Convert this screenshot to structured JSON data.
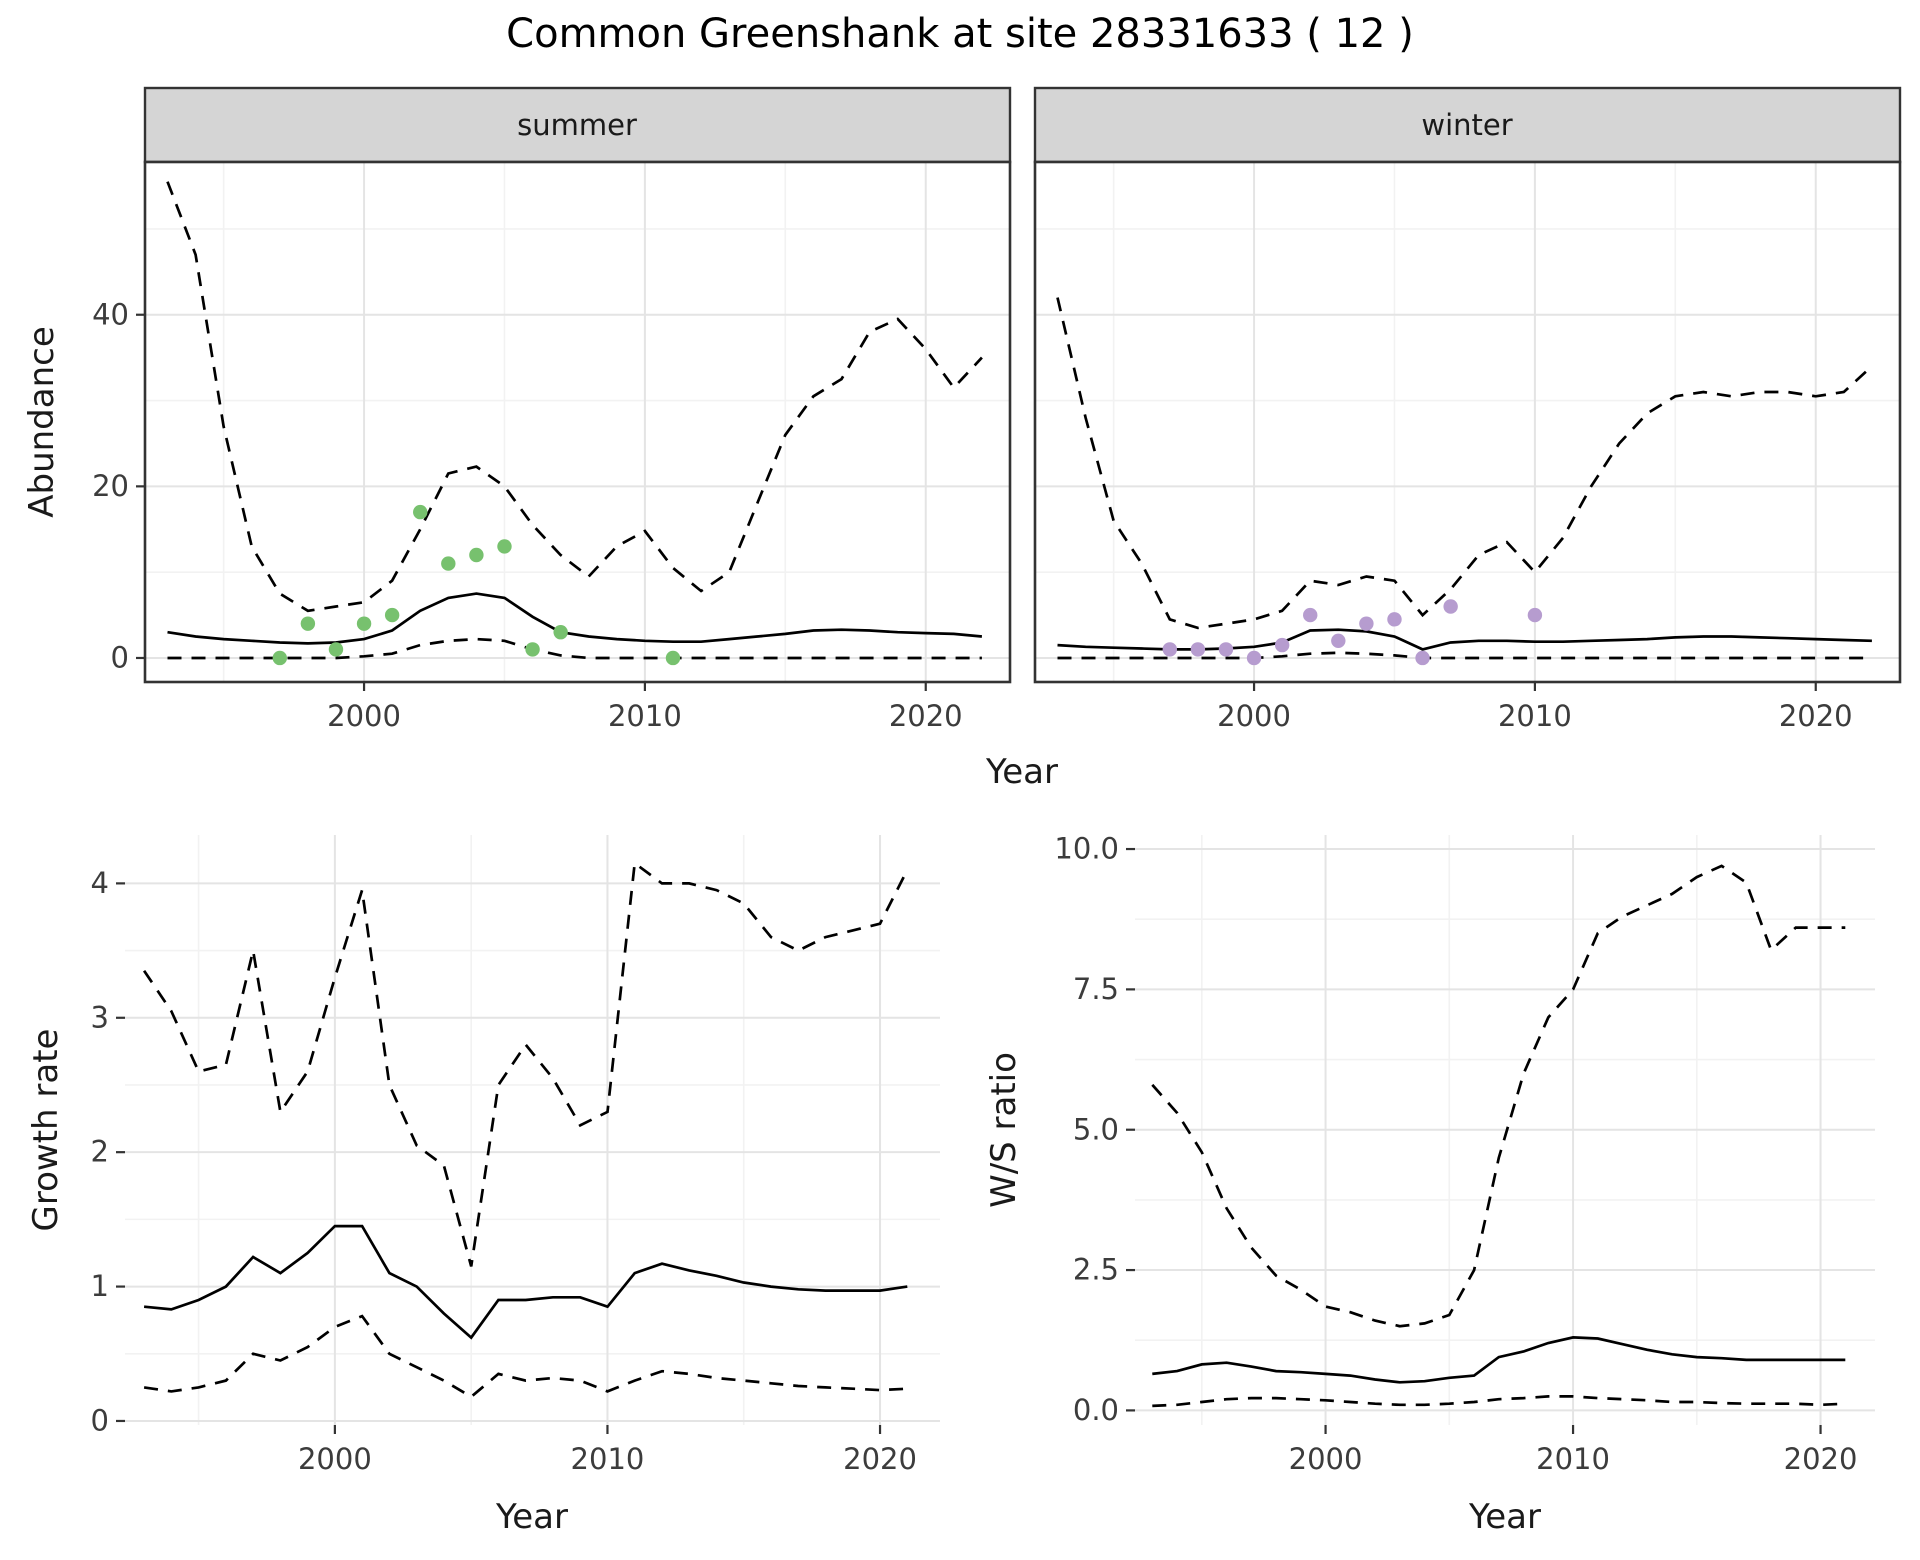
{
  "title": "Common Greenshank at site 28331633 ( 12 )",
  "labels": {
    "year": "Year",
    "abundance": "Abundance",
    "growth_rate": "Growth rate",
    "ws_ratio": "W/S ratio"
  },
  "facets": {
    "summer": "summer",
    "winter": "winter"
  },
  "colors": {
    "line": "#000000",
    "summer_points": "#77c16e",
    "winter_points": "#b69ccf",
    "strip_bg": "#d5d5d5",
    "grid_major": "#e4e4e4",
    "grid_minor": "#f2f2f2",
    "panel_bg": "#ffffff",
    "border": "#333333"
  },
  "chart_data": [
    {
      "id": "summer",
      "type": "line",
      "facet_label": "summer",
      "xlabel": "Year",
      "ylabel": "Abundance",
      "xlim": [
        1992.2,
        2023.0
      ],
      "ylim": [
        -2.8,
        57.8
      ],
      "x_ticks": [
        2000,
        2010,
        2020
      ],
      "x_tick_labels": [
        "2000",
        "2010",
        "2020"
      ],
      "y_ticks": [
        0,
        20,
        40
      ],
      "y_tick_labels": [
        "0",
        "20",
        "40"
      ],
      "x": [
        1993,
        1994,
        1995,
        1996,
        1997,
        1998,
        1999,
        2000,
        2001,
        2002,
        2003,
        2004,
        2005,
        2006,
        2007,
        2008,
        2009,
        2010,
        2011,
        2012,
        2013,
        2014,
        2015,
        2016,
        2017,
        2018,
        2019,
        2020,
        2021,
        2022
      ],
      "series": [
        {
          "name": "upper_95ci",
          "style": "dashed",
          "values": [
            55.5,
            47,
            27,
            13,
            7.5,
            5.5,
            6,
            6.5,
            9,
            15,
            21.5,
            22.3,
            20,
            15.5,
            12,
            9.5,
            13,
            14.8,
            10.5,
            7.8,
            10,
            18,
            26,
            30.5,
            32.5,
            38,
            39.5,
            36,
            31.5,
            35
          ]
        },
        {
          "name": "mean",
          "style": "solid",
          "values": [
            3,
            2.5,
            2.2,
            2,
            1.8,
            1.7,
            1.8,
            2.2,
            3.2,
            5.5,
            7,
            7.5,
            7,
            4.8,
            3,
            2.5,
            2.2,
            2,
            1.9,
            1.9,
            2.2,
            2.5,
            2.8,
            3.2,
            3.3,
            3.2,
            3,
            2.9,
            2.8,
            2.5
          ]
        },
        {
          "name": "lower_95ci",
          "style": "dashed",
          "values": [
            0,
            0,
            0,
            0,
            0,
            0,
            0,
            0.2,
            0.5,
            1.5,
            2,
            2.2,
            2,
            1,
            0.3,
            0,
            0,
            0,
            0,
            0,
            0,
            0,
            0,
            0,
            0,
            0,
            0,
            0,
            0,
            0
          ]
        }
      ],
      "points": {
        "name": "observed_counts",
        "color": "#77c16e",
        "x": [
          1997,
          1998,
          1999,
          2000,
          2001,
          2002,
          2003,
          2004,
          2005,
          2006,
          2007,
          2011
        ],
        "y": [
          0,
          4,
          1,
          4,
          5,
          17,
          11,
          12,
          13,
          1,
          3,
          0
        ]
      }
    },
    {
      "id": "winter",
      "type": "line",
      "facet_label": "winter",
      "xlabel": "Year",
      "ylabel": "Abundance",
      "xlim": [
        1992.2,
        2023.0
      ],
      "ylim": [
        -2.8,
        57.8
      ],
      "x_ticks": [
        2000,
        2010,
        2020
      ],
      "x_tick_labels": [
        "2000",
        "2010",
        "2020"
      ],
      "y_ticks": [
        0,
        20,
        40
      ],
      "y_tick_labels": [
        "0",
        "20",
        "40"
      ],
      "x": [
        1993,
        1994,
        1995,
        1996,
        1997,
        1998,
        1999,
        2000,
        2001,
        2002,
        2003,
        2004,
        2005,
        2006,
        2007,
        2008,
        2009,
        2010,
        2011,
        2012,
        2013,
        2014,
        2015,
        2016,
        2017,
        2018,
        2019,
        2020,
        2021,
        2022
      ],
      "series": [
        {
          "name": "upper_95ci",
          "style": "dashed",
          "values": [
            42,
            28,
            16,
            11,
            4.5,
            3.5,
            4,
            4.5,
            5.5,
            9,
            8.5,
            9.5,
            9,
            5,
            8,
            12,
            13.5,
            10,
            14,
            20,
            25,
            28.5,
            30.5,
            31,
            30.5,
            31,
            31,
            30.5,
            31,
            34
          ]
        },
        {
          "name": "mean",
          "style": "solid",
          "values": [
            1.5,
            1.3,
            1.2,
            1.1,
            1,
            1,
            1.1,
            1.3,
            1.8,
            3.2,
            3.3,
            3.1,
            2.5,
            1,
            1.8,
            2,
            2,
            1.9,
            1.9,
            2,
            2.1,
            2.2,
            2.4,
            2.5,
            2.5,
            2.4,
            2.3,
            2.2,
            2.1,
            2
          ]
        },
        {
          "name": "lower_95ci",
          "style": "dashed",
          "values": [
            0,
            0,
            0,
            0,
            0,
            0,
            0,
            0,
            0.2,
            0.5,
            0.6,
            0.5,
            0.3,
            0,
            0,
            0,
            0,
            0,
            0,
            0,
            0,
            0,
            0,
            0,
            0,
            0,
            0,
            0,
            0,
            0
          ]
        }
      ],
      "points": {
        "name": "observed_counts",
        "color": "#b69ccf",
        "x": [
          1997,
          1998,
          1999,
          2000,
          2001,
          2002,
          2003,
          2004,
          2005,
          2006,
          2007,
          2010
        ],
        "y": [
          1,
          1,
          1,
          0,
          1.5,
          5,
          2,
          4,
          4.5,
          0,
          6,
          5
        ]
      }
    },
    {
      "id": "growth",
      "type": "line",
      "xlabel": "Year",
      "ylabel": "Growth rate",
      "xlim": [
        1992.3,
        2022.2
      ],
      "ylim": [
        -0.03,
        4.36
      ],
      "x_ticks": [
        2000,
        2010,
        2020
      ],
      "x_tick_labels": [
        "2000",
        "2010",
        "2020"
      ],
      "y_ticks": [
        0,
        1,
        2,
        3,
        4
      ],
      "y_tick_labels": [
        "0",
        "1",
        "2",
        "3",
        "4"
      ],
      "x": [
        1993,
        1994,
        1995,
        1996,
        1997,
        1998,
        1999,
        2000,
        2001,
        2002,
        2003,
        2004,
        2005,
        2006,
        2007,
        2008,
        2009,
        2010,
        2011,
        2012,
        2013,
        2014,
        2015,
        2016,
        2017,
        2018,
        2019,
        2020,
        2021
      ],
      "series": [
        {
          "name": "upper_95ci",
          "style": "dashed",
          "values": [
            3.35,
            3.05,
            2.6,
            2.65,
            3.5,
            2.3,
            2.6,
            3.3,
            3.95,
            2.5,
            2.05,
            1.9,
            1.15,
            2.5,
            2.8,
            2.55,
            2.2,
            2.3,
            4.15,
            4.0,
            4.0,
            3.95,
            3.85,
            3.6,
            3.5,
            3.6,
            3.65,
            3.7,
            4.1
          ]
        },
        {
          "name": "mean",
          "style": "solid",
          "values": [
            0.85,
            0.83,
            0.9,
            1.0,
            1.22,
            1.1,
            1.25,
            1.45,
            1.45,
            1.1,
            1.0,
            0.8,
            0.62,
            0.9,
            0.9,
            0.92,
            0.92,
            0.85,
            1.1,
            1.17,
            1.12,
            1.08,
            1.03,
            1.0,
            0.98,
            0.97,
            0.97,
            0.97,
            1.0
          ]
        },
        {
          "name": "lower_95ci",
          "style": "dashed",
          "values": [
            0.25,
            0.22,
            0.25,
            0.3,
            0.5,
            0.45,
            0.55,
            0.7,
            0.78,
            0.5,
            0.4,
            0.3,
            0.18,
            0.35,
            0.3,
            0.32,
            0.3,
            0.22,
            0.3,
            0.37,
            0.35,
            0.32,
            0.3,
            0.28,
            0.26,
            0.25,
            0.24,
            0.23,
            0.24
          ]
        }
      ]
    },
    {
      "id": "ratio",
      "type": "line",
      "xlabel": "Year",
      "ylabel": "W/S ratio",
      "xlim": [
        1992.3,
        2022.2
      ],
      "ylim": [
        -0.26,
        10.25
      ],
      "x_ticks": [
        2000,
        2010,
        2020
      ],
      "x_tick_labels": [
        "2000",
        "2010",
        "2020"
      ],
      "y_ticks": [
        0,
        2.5,
        5,
        7.5,
        10
      ],
      "y_tick_labels": [
        "0.0",
        "2.5",
        "5.0",
        "7.5",
        "10.0"
      ],
      "x": [
        1993,
        1994,
        1995,
        1996,
        1997,
        1998,
        1999,
        2000,
        2001,
        2002,
        2003,
        2004,
        2005,
        2006,
        2007,
        2008,
        2009,
        2010,
        2011,
        2012,
        2013,
        2014,
        2015,
        2016,
        2017,
        2018,
        2019,
        2020,
        2021
      ],
      "series": [
        {
          "name": "upper_95ci",
          "style": "dashed",
          "values": [
            5.8,
            5.3,
            4.6,
            3.6,
            2.9,
            2.4,
            2.15,
            1.85,
            1.75,
            1.6,
            1.5,
            1.55,
            1.7,
            2.5,
            4.5,
            6.0,
            7.0,
            7.5,
            8.5,
            8.8,
            9.0,
            9.2,
            9.5,
            9.7,
            9.4,
            8.2,
            8.6,
            8.6,
            8.6
          ]
        },
        {
          "name": "mean",
          "style": "solid",
          "values": [
            0.65,
            0.7,
            0.82,
            0.85,
            0.78,
            0.7,
            0.68,
            0.65,
            0.62,
            0.55,
            0.5,
            0.52,
            0.58,
            0.62,
            0.95,
            1.05,
            1.2,
            1.3,
            1.28,
            1.18,
            1.08,
            1.0,
            0.95,
            0.93,
            0.9,
            0.9,
            0.9,
            0.9,
            0.9
          ]
        },
        {
          "name": "lower_95ci",
          "style": "dashed",
          "values": [
            0.08,
            0.1,
            0.15,
            0.2,
            0.22,
            0.22,
            0.2,
            0.18,
            0.15,
            0.12,
            0.1,
            0.1,
            0.12,
            0.15,
            0.2,
            0.22,
            0.25,
            0.25,
            0.22,
            0.2,
            0.18,
            0.15,
            0.15,
            0.13,
            0.12,
            0.12,
            0.12,
            0.1,
            0.12
          ]
        }
      ]
    }
  ]
}
